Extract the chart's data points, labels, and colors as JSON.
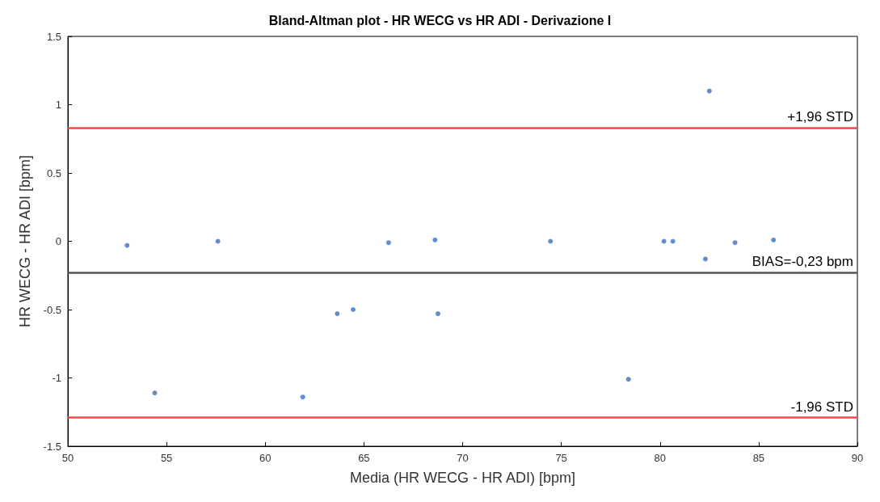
{
  "chart_data": {
    "type": "scatter",
    "title": "Bland-Altman plot - HR WECG vs HR ADI - Derivazione I",
    "xlabel": "Media (HR WECG - HR ADI) [bpm]",
    "ylabel": "HR WECG - HR ADI [bpm]",
    "x": [
      53.0,
      54.4,
      57.6,
      61.9,
      63.65,
      64.45,
      66.25,
      68.6,
      68.75,
      74.45,
      78.4,
      80.2,
      80.65,
      82.3,
      82.5,
      83.8,
      85.75
    ],
    "series": [
      {
        "color": "#3a72c4",
        "values": [
          -0.03,
          -1.11,
          0.0,
          -1.14,
          -0.53,
          -0.5,
          -0.01,
          0.01,
          -0.53,
          0.0,
          -1.01,
          0.0,
          0.0,
          -0.13,
          1.1,
          -0.01,
          0.01
        ]
      }
    ],
    "marker": "circle",
    "xlim": [
      50,
      90
    ],
    "xticks": [
      50,
      55,
      60,
      65,
      70,
      75,
      80,
      85,
      90
    ],
    "ylim": [
      -1.5,
      1.5
    ],
    "yticks": [
      -1.5,
      -1,
      -0.5,
      0,
      0.5,
      1,
      1.5
    ],
    "grid": false,
    "ref_lines": [
      {
        "axis": "y",
        "value": 0.83,
        "label": "+1,96 STD",
        "color": "#e84a4a"
      },
      {
        "axis": "y",
        "value": -0.23,
        "label": "BIAS=-0,23 bpm",
        "color": "#555555"
      },
      {
        "axis": "y",
        "value": -1.29,
        "label": "-1,96 STD",
        "color": "#e84a4a"
      }
    ]
  }
}
